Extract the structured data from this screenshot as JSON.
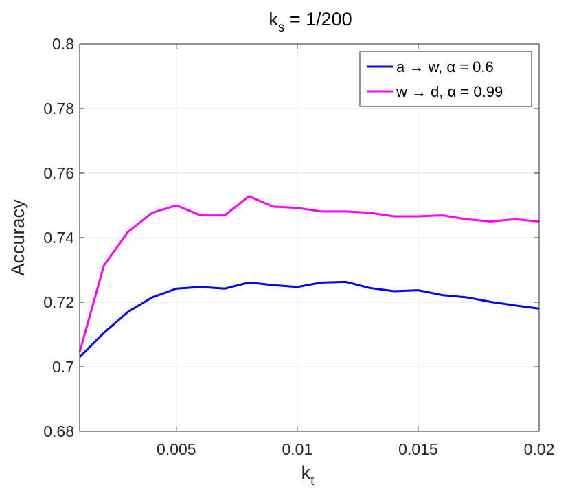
{
  "chart_data": {
    "type": "line",
    "title": "k",
    "title_subscript": "s",
    "title_suffix": " = 1/200",
    "xlabel": "k",
    "xlabel_subscript": "t",
    "ylabel": "Accuracy",
    "xlim": [
      0.001,
      0.02
    ],
    "ylim": [
      0.68,
      0.8
    ],
    "xticks": [
      0.005,
      0.01,
      0.015,
      0.02
    ],
    "xtick_labels": [
      "0.005",
      "0.01",
      "0.015",
      "0.02"
    ],
    "yticks": [
      0.68,
      0.7,
      0.72,
      0.74,
      0.76,
      0.78,
      0.8
    ],
    "ytick_labels": [
      "0.68",
      "0.7",
      "0.72",
      "0.74",
      "0.76",
      "0.78",
      "0.8"
    ],
    "grid": true,
    "legend_position": "top-right",
    "x": [
      0.001,
      0.002,
      0.003,
      0.004,
      0.005,
      0.006,
      0.007,
      0.008,
      0.009,
      0.01,
      0.011,
      0.012,
      0.013,
      0.014,
      0.015,
      0.016,
      0.017,
      0.018,
      0.019,
      0.02
    ],
    "series": [
      {
        "name": "a → w, α = 0.6",
        "color": "#0000FF",
        "values": [
          0.703,
          0.7105,
          0.717,
          0.7215,
          0.7242,
          0.7247,
          0.7242,
          0.7261,
          0.7253,
          0.7247,
          0.7261,
          0.7263,
          0.7244,
          0.7234,
          0.7237,
          0.7222,
          0.7215,
          0.7201,
          0.719,
          0.718
        ]
      },
      {
        "name": "w → d, α = 0.99",
        "color": "#FF00FF",
        "values": [
          0.7045,
          0.7313,
          0.7418,
          0.7477,
          0.75,
          0.7469,
          0.7469,
          0.7528,
          0.7496,
          0.7492,
          0.7481,
          0.7481,
          0.7477,
          0.7466,
          0.7466,
          0.7469,
          0.7457,
          0.745,
          0.7457,
          0.745
        ]
      }
    ]
  }
}
